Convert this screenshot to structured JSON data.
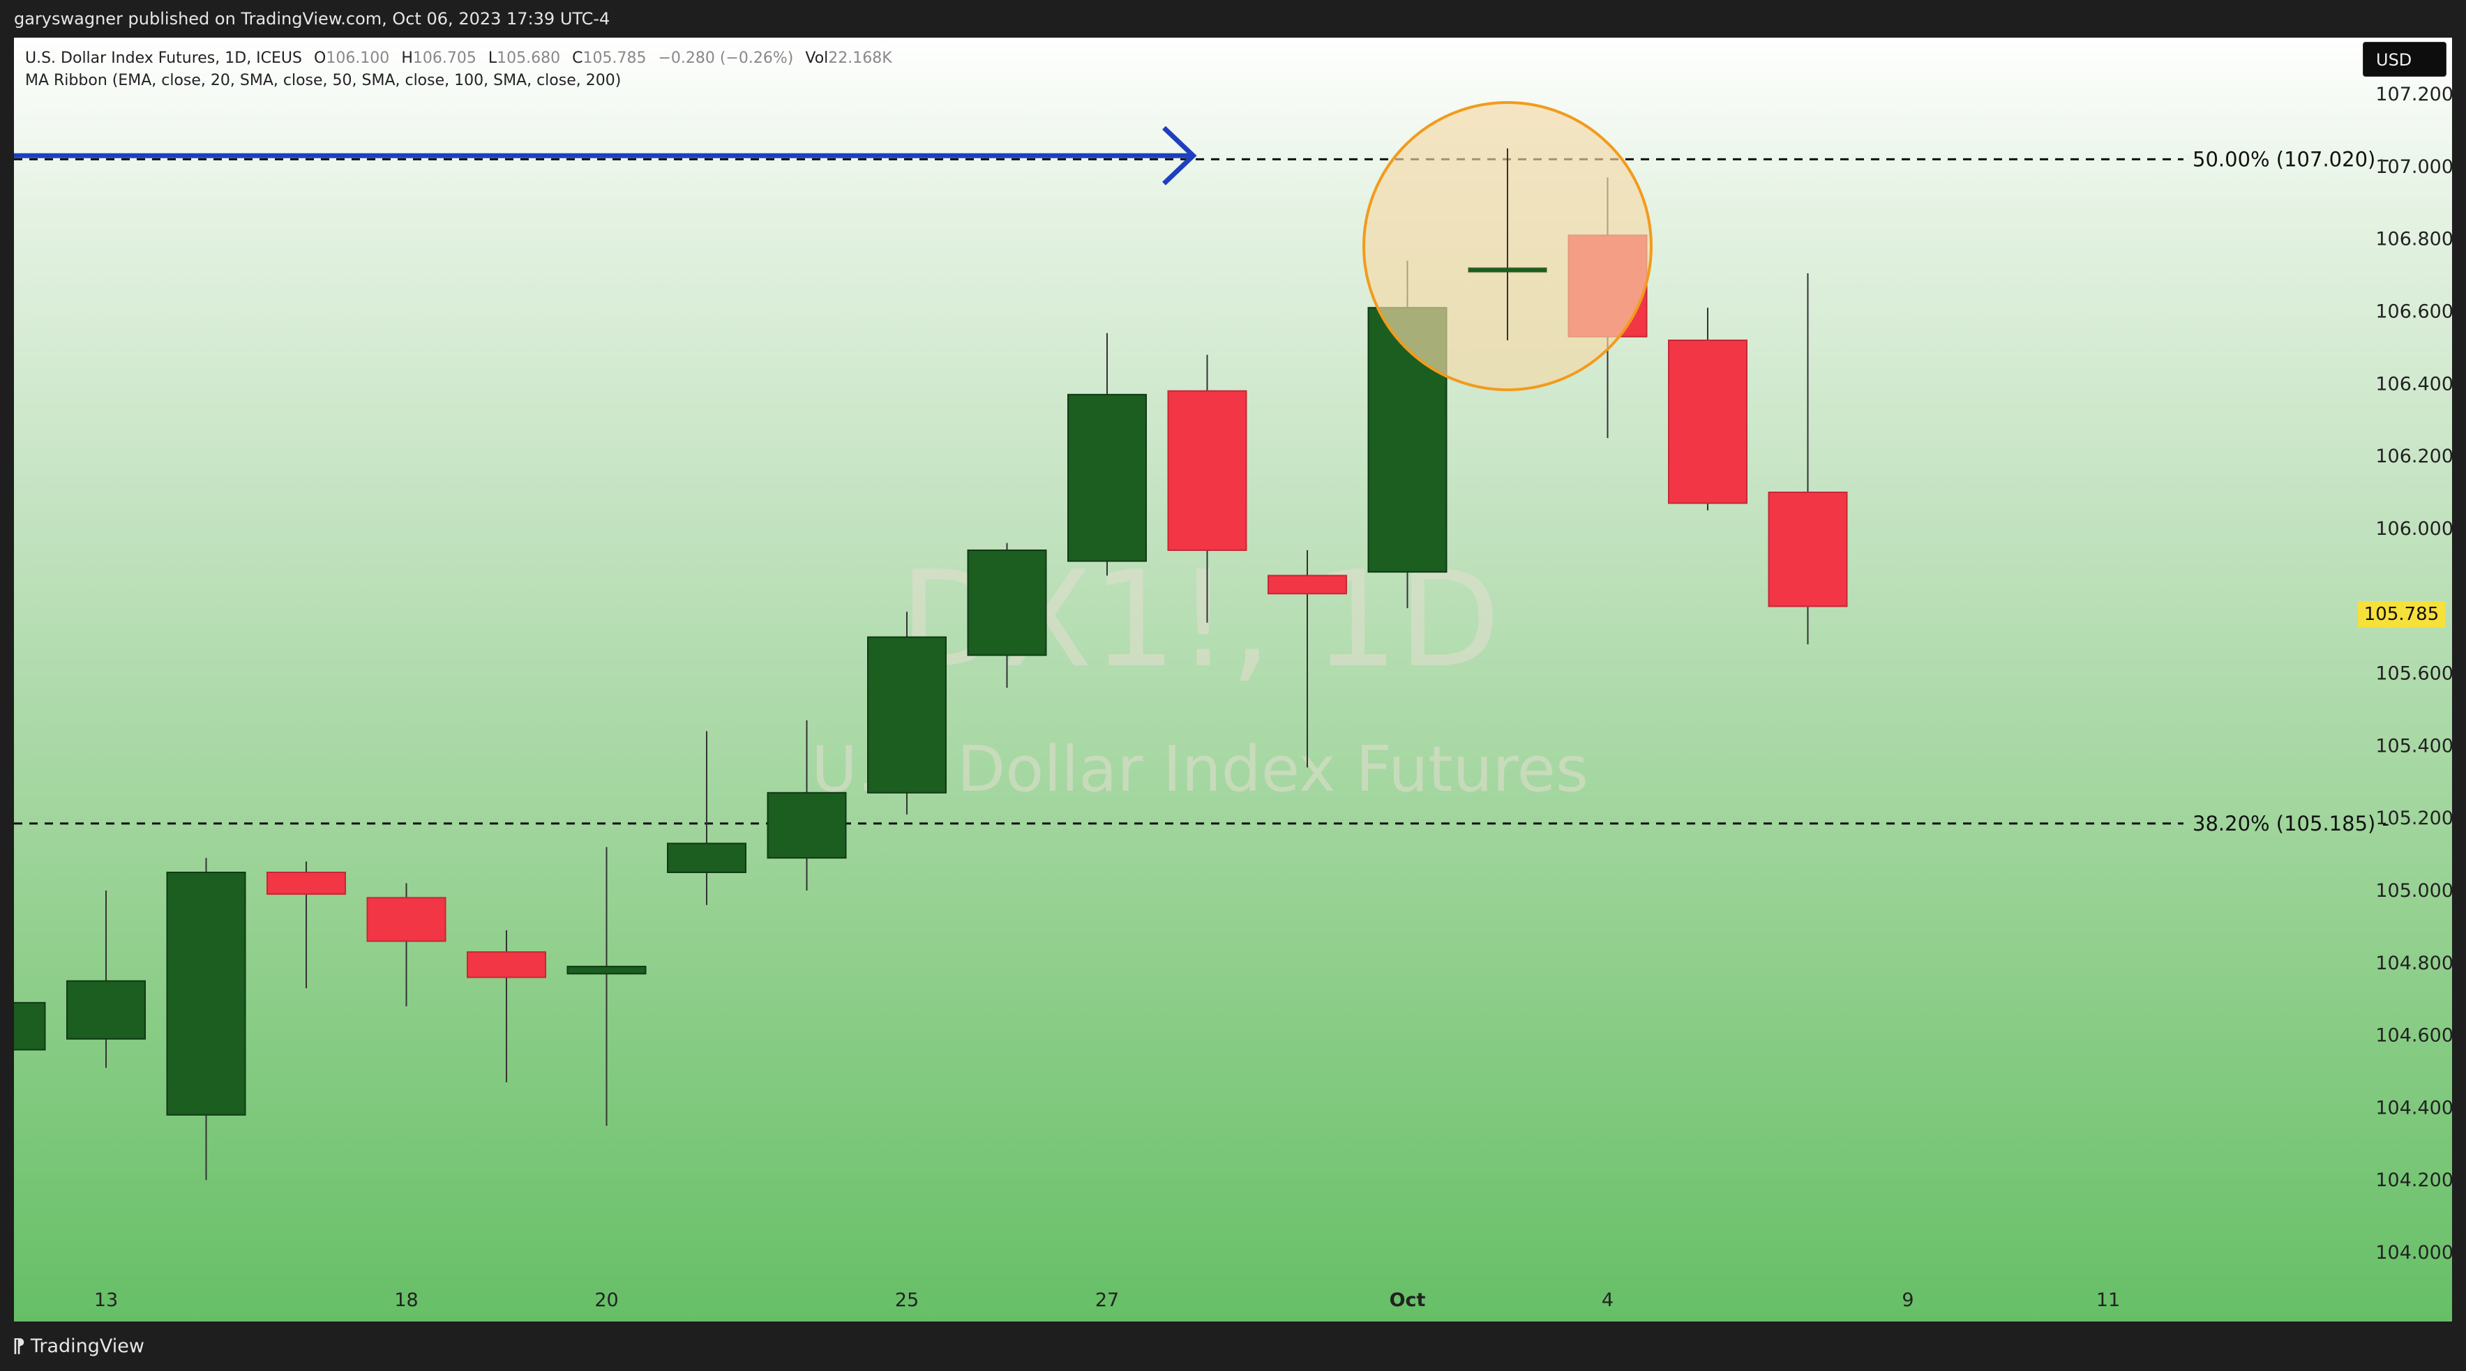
{
  "header": {
    "published": "garyswagner published on TradingView.com, Oct 06, 2023 17:39 UTC-4"
  },
  "legend": {
    "symbol": "U.S. Dollar Index Futures, 1D, ICEUS",
    "o_label": "O",
    "o_value": "106.100",
    "h_label": "H",
    "h_value": "106.705",
    "l_label": "L",
    "l_value": "105.680",
    "c_label": "C",
    "c_value": "105.785",
    "change": "−0.280 (−0.26%)",
    "vol_label": "Vol",
    "vol_value": "22.168K",
    "indicator": "MA Ribbon (EMA, close, 20, SMA, close, 50, SMA, close, 100, SMA, close, 200)"
  },
  "watermark": {
    "ticker": "DX1!, 1D",
    "name": "U.S. Dollar Index Futures"
  },
  "currency_button": "USD",
  "current_price": "105.785",
  "footer": {
    "brand": "TradingView"
  },
  "colors": {
    "up": "#1b5e20",
    "down": "#f23645",
    "arrow": "#1e3fbf",
    "circle": "#f29b1c"
  },
  "chart_data": {
    "type": "candlestick",
    "ylim": [
      103.9,
      107.45
    ],
    "yticks": [
      "104.000",
      "104.200",
      "104.400",
      "104.600",
      "104.800",
      "105.000",
      "105.200",
      "105.400",
      "105.600",
      "106.000",
      "106.200",
      "106.400",
      "106.600",
      "106.800",
      "107.000",
      "107.200"
    ],
    "xticks": [
      {
        "label": "13",
        "date": "2023-09-13"
      },
      {
        "label": "18",
        "date": "2023-09-18"
      },
      {
        "label": "20",
        "date": "2023-09-20"
      },
      {
        "label": "25",
        "date": "2023-09-25"
      },
      {
        "label": "27",
        "date": "2023-09-27"
      },
      {
        "label": "Oct",
        "date": "2023-10-02"
      },
      {
        "label": "4",
        "date": "2023-10-04"
      },
      {
        "label": "9",
        "date": "2023-10-09"
      },
      {
        "label": "11",
        "date": "2023-10-11"
      }
    ],
    "candles": [
      {
        "date": "2023-09-12",
        "o": 104.56,
        "h": 104.69,
        "l": 104.56,
        "c": 104.69
      },
      {
        "date": "2023-09-13",
        "o": 104.59,
        "h": 105.0,
        "l": 104.51,
        "c": 104.75
      },
      {
        "date": "2023-09-14",
        "o": 104.38,
        "h": 105.09,
        "l": 104.2,
        "c": 105.05
      },
      {
        "date": "2023-09-15",
        "o": 105.05,
        "h": 105.08,
        "l": 104.73,
        "c": 104.99
      },
      {
        "date": "2023-09-18",
        "o": 104.98,
        "h": 105.02,
        "l": 104.68,
        "c": 104.86
      },
      {
        "date": "2023-09-19",
        "o": 104.83,
        "h": 104.89,
        "l": 104.47,
        "c": 104.76
      },
      {
        "date": "2023-09-20",
        "o": 104.77,
        "h": 105.12,
        "l": 104.35,
        "c": 104.79
      },
      {
        "date": "2023-09-21",
        "o": 105.05,
        "h": 105.44,
        "l": 104.96,
        "c": 105.13
      },
      {
        "date": "2023-09-22",
        "o": 105.09,
        "h": 105.47,
        "l": 105.0,
        "c": 105.27
      },
      {
        "date": "2023-09-25",
        "o": 105.27,
        "h": 105.77,
        "l": 105.21,
        "c": 105.7
      },
      {
        "date": "2023-09-26",
        "o": 105.65,
        "h": 105.96,
        "l": 105.56,
        "c": 105.94
      },
      {
        "date": "2023-09-27",
        "o": 105.91,
        "h": 106.54,
        "l": 105.87,
        "c": 106.37
      },
      {
        "date": "2023-09-28",
        "o": 106.38,
        "h": 106.48,
        "l": 105.74,
        "c": 105.94
      },
      {
        "date": "2023-09-29",
        "o": 105.87,
        "h": 105.94,
        "l": 105.34,
        "c": 105.82
      },
      {
        "date": "2023-10-02",
        "o": 105.88,
        "h": 106.74,
        "l": 105.78,
        "c": 106.61
      },
      {
        "date": "2023-10-03",
        "o": 106.71,
        "h": 107.05,
        "l": 106.52,
        "c": 106.72
      },
      {
        "date": "2023-10-04",
        "o": 106.81,
        "h": 106.97,
        "l": 106.25,
        "c": 106.53
      },
      {
        "date": "2023-10-05",
        "o": 106.52,
        "h": 106.61,
        "l": 106.05,
        "c": 106.07
      },
      {
        "date": "2023-10-06",
        "o": 106.1,
        "h": 106.705,
        "l": 105.68,
        "c": 105.785
      }
    ],
    "levels": [
      {
        "label": "50.00% (107.020)",
        "value": 107.02
      },
      {
        "label": "38.20% (105.185)",
        "value": 105.185
      }
    ],
    "annotations": [
      {
        "type": "arrow",
        "value": 107.03,
        "from_date": "2023-09-05",
        "to_date": "2023-09-28"
      },
      {
        "type": "circle",
        "date": "2023-10-03",
        "value": 106.78
      }
    ]
  }
}
